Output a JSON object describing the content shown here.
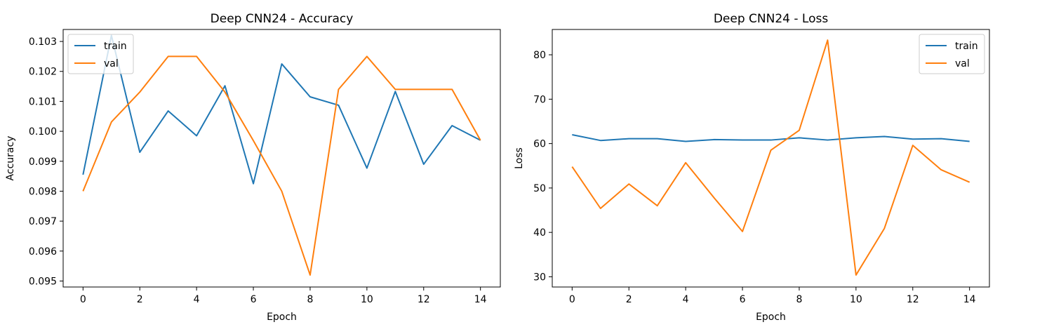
{
  "chart_data": [
    {
      "type": "line",
      "title": "Deep CNN24 - Accuracy",
      "xlabel": "Epoch",
      "ylabel": "Accuracy",
      "xlim": [
        -0.7,
        14.7
      ],
      "ylim": [
        0.0948,
        0.1034
      ],
      "xticks": [
        0,
        2,
        4,
        6,
        8,
        10,
        12,
        14
      ],
      "yticks": [
        0.095,
        0.096,
        0.097,
        0.098,
        0.099,
        0.1,
        0.101,
        0.102,
        0.103
      ],
      "ytick_labels": [
        "0.095",
        "0.096",
        "0.097",
        "0.098",
        "0.099",
        "0.100",
        "0.101",
        "0.102",
        "0.103"
      ],
      "legend_position": "upper-left",
      "grid": false,
      "x": [
        0,
        1,
        2,
        3,
        4,
        5,
        6,
        7,
        8,
        9,
        10,
        11,
        12,
        13,
        14
      ],
      "series": [
        {
          "name": "train",
          "color": "#1f77b4",
          "values": [
            0.09855,
            0.1032,
            0.0993,
            0.10068,
            0.09985,
            0.10152,
            0.09825,
            0.10225,
            0.10115,
            0.10087,
            0.09877,
            0.10133,
            0.0989,
            0.10019,
            0.0997
          ]
        },
        {
          "name": "val",
          "color": "#ff7f0e",
          "values": [
            0.098,
            0.10031,
            0.10131,
            0.1025,
            0.1025,
            0.10131,
            0.09969,
            0.098,
            0.0952,
            0.1014,
            0.1025,
            0.1014,
            0.1014,
            0.1014,
            0.0997
          ]
        }
      ]
    },
    {
      "type": "line",
      "title": "Deep CNN24 - Loss",
      "xlabel": "Epoch",
      "ylabel": "Loss",
      "xlim": [
        -0.7,
        14.7
      ],
      "ylim": [
        27.7,
        85.7
      ],
      "xticks": [
        0,
        2,
        4,
        6,
        8,
        10,
        12,
        14
      ],
      "yticks": [
        30,
        40,
        50,
        60,
        70,
        80
      ],
      "ytick_labels": [
        "30",
        "40",
        "50",
        "60",
        "70",
        "80"
      ],
      "legend_position": "upper-right",
      "grid": false,
      "x": [
        0,
        1,
        2,
        3,
        4,
        5,
        6,
        7,
        8,
        9,
        10,
        11,
        12,
        13,
        14
      ],
      "series": [
        {
          "name": "train",
          "color": "#1f77b4",
          "values": [
            62.0,
            60.7,
            61.1,
            61.1,
            60.5,
            60.9,
            60.8,
            60.8,
            61.3,
            60.8,
            61.3,
            61.6,
            61.0,
            61.1,
            60.5
          ]
        },
        {
          "name": "val",
          "color": "#ff7f0e",
          "values": [
            54.8,
            45.4,
            50.9,
            46.0,
            55.7,
            47.8,
            40.2,
            58.5,
            63.0,
            83.3,
            30.4,
            40.9,
            59.6,
            54.1,
            51.3
          ]
        }
      ]
    }
  ]
}
